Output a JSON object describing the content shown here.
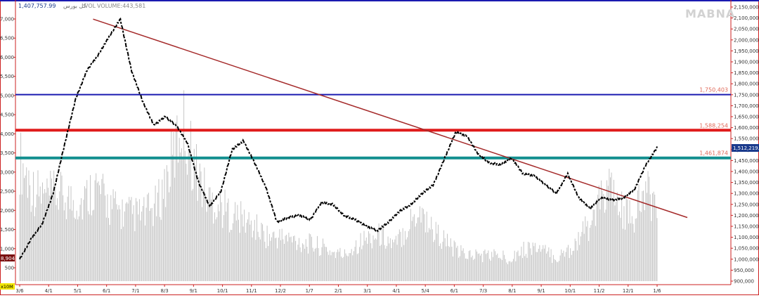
{
  "header": {
    "price_label": "1,407,757.99",
    "index_name": "کل بورس",
    "volume_label": "VOL",
    "volume_value": "VOLUME:443,581"
  },
  "watermark": "MABNA",
  "left_panel": {
    "volume_highlight": "8,904",
    "volume_unit": "x10M"
  },
  "colors": {
    "price": "#000000",
    "volume": "#bfbfbf",
    "trendline": "#a52a2a",
    "level_blue": "#1a1ab0",
    "level_red": "#e01b1b",
    "level_teal": "#138f8f",
    "level_label": "#e06a5a",
    "current_badge": "#1a3a8c",
    "frame": "#cc2222"
  },
  "chart_data": {
    "type": "line",
    "title": "",
    "xlabel": "",
    "ylabel": "",
    "ylim": [
      900000,
      2150000
    ],
    "x_ticks": [
      "3/6",
      "4/1",
      "5/1",
      "6/1",
      "7/1",
      "8/3",
      "9/1",
      "10/1",
      "11/1",
      "12/2",
      "1/7",
      "2/1",
      "3/1",
      "4/1",
      "5/4",
      "6/1",
      "7/3",
      "8/1",
      "9/1",
      "10/1",
      "11/2",
      "12/1",
      "1/6"
    ],
    "y_ticks": [
      "2,150,000",
      "2,100,000",
      "2,050,000",
      "2,000,000",
      "1,950,000",
      "1,900,000",
      "1,850,000",
      "1,800,000",
      "1,750,000",
      "1,700,000",
      "1,650,000",
      "1,600,000",
      "1,550,000",
      "1,500,000",
      "1,450,000",
      "1,400,000",
      "1,350,000",
      "1,300,000",
      "1,250,000",
      "1,200,000",
      "1,150,000",
      "1,100,000",
      "1,050,000",
      "1,000,000",
      "950,000",
      "900,000"
    ],
    "left_ticks": [
      "7,000",
      "6,500",
      "6,000",
      "5,500",
      "5,000",
      "4,500",
      "4,000",
      "3,500",
      "3,000",
      "2,500",
      "2,000",
      "1,500",
      "1,000",
      "500"
    ],
    "series": [
      {
        "type": "price",
        "values": [
          1000000,
          1090000,
          1160000,
          1300000,
          1520000,
          1730000,
          1860000,
          1930000,
          2015000,
          2095000,
          1860000,
          1720000,
          1610000,
          1650000,
          1610000,
          1530000,
          1350000,
          1240000,
          1310000,
          1500000,
          1540000,
          1440000,
          1330000,
          1170000,
          1190000,
          1200000,
          1180000,
          1260000,
          1250000,
          1200000,
          1180000,
          1150000,
          1130000,
          1170000,
          1220000,
          1250000,
          1300000,
          1340000,
          1460000,
          1580000,
          1560000,
          1480000,
          1440000,
          1430000,
          1460000,
          1390000,
          1380000,
          1340000,
          1300000,
          1390000,
          1280000,
          1230000,
          1280000,
          1270000,
          1280000,
          1320000,
          1430000,
          1510000
        ]
      },
      {
        "type": "volume",
        "values": [
          4200,
          3200,
          2900,
          3000,
          2800,
          2700,
          3300,
          2700,
          2400,
          2300,
          2300,
          2600,
          3800,
          5500,
          4000,
          2900,
          2600,
          2300,
          2100,
          1800,
          1500,
          1500,
          1400,
          1300,
          1200,
          1000,
          900,
          1300,
          1500,
          1600,
          1200,
          1900,
          2500,
          1800,
          1400,
          1000,
          900,
          900,
          900,
          800,
          1000,
          1200,
          1000,
          800,
          1100,
          1600,
          2200,
          3300,
          2500,
          2100,
          3000,
          2800
        ]
      }
    ],
    "trendline": {
      "from": [
        "5/1",
        2095000
      ],
      "to": [
        "1/6",
        1190000
      ]
    },
    "levels": [
      {
        "label": "1,750,403",
        "value": 1750403,
        "color": "#1a1ab0"
      },
      {
        "label": "1,588,254",
        "value": 1588254,
        "color": "#e01b1b"
      },
      {
        "label": "1,461,874",
        "value": 1461874,
        "color": "#138f8f"
      }
    ],
    "current_value": "1,512,219.1",
    "grid": false,
    "legend": "none"
  }
}
